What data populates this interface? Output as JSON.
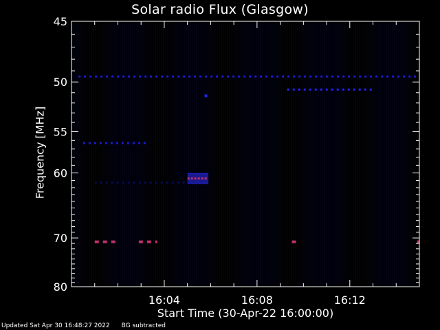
{
  "chart_data": {
    "type": "heatmap",
    "title": "Solar radio Flux (Glasgow)",
    "xlabel": "Start Time (30-Apr-22 16:00:00)",
    "ylabel": "Frequency [MHz]",
    "x_unit": "minutes after 16:00:00",
    "xlim": [
      0,
      15
    ],
    "ylim": [
      45,
      80
    ],
    "y_scale": "reciprocal",
    "x_ticks": [
      {
        "value": 4,
        "label": "16:04"
      },
      {
        "value": 8,
        "label": "16:08"
      },
      {
        "value": 12,
        "label": "16:12"
      }
    ],
    "y_ticks": [
      {
        "value": 45,
        "label": "45"
      },
      {
        "value": 50,
        "label": "50"
      },
      {
        "value": 55,
        "label": "55"
      },
      {
        "value": 60,
        "label": "60"
      },
      {
        "value": 70,
        "label": "70"
      },
      {
        "value": 80,
        "label": "80"
      }
    ],
    "colors": {
      "background": "#000000",
      "weak": "#0a0a50",
      "medium": "#1a1ad0",
      "strong": "#2222ff",
      "burst": "#c0306a"
    },
    "features": [
      {
        "kind": "band",
        "freq": 49.5,
        "x_from": 0.3,
        "x_to": 15,
        "intensity": "medium"
      },
      {
        "kind": "band",
        "freq": 50.7,
        "x_from": 9.3,
        "x_to": 13.0,
        "intensity": "strong"
      },
      {
        "kind": "band",
        "freq": 56.3,
        "x_from": 0.5,
        "x_to": 3.2,
        "intensity": "medium"
      },
      {
        "kind": "band",
        "freq": 61.3,
        "x_from": 1.0,
        "x_to": 5.0,
        "intensity": "weak"
      },
      {
        "kind": "burst",
        "freq_from": 60.0,
        "freq_to": 61.5,
        "x_from": 5.0,
        "x_to": 5.9,
        "intensity": "burst"
      },
      {
        "kind": "band",
        "freq": 70.7,
        "x_from": 1.0,
        "x_to": 1.9,
        "intensity": "burst"
      },
      {
        "kind": "band",
        "freq": 70.7,
        "x_from": 2.9,
        "x_to": 3.7,
        "intensity": "burst"
      },
      {
        "kind": "band",
        "freq": 70.7,
        "x_from": 9.5,
        "x_to": 9.8,
        "intensity": "burst"
      },
      {
        "kind": "band",
        "freq": 70.7,
        "x_from": 14.9,
        "x_to": 15.0,
        "intensity": "burst"
      },
      {
        "kind": "point",
        "freq": 51.3,
        "x": 5.8,
        "intensity": "strong"
      }
    ]
  },
  "footer": {
    "updated": "Updated Sat Apr 30 16:48:27 2022",
    "bg": "BG subtracted"
  }
}
